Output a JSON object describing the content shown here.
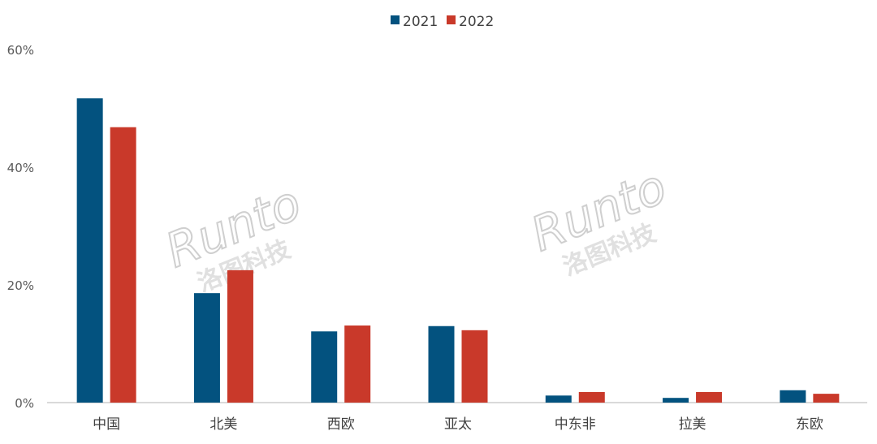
{
  "chart_data": {
    "type": "bar",
    "categories": [
      "中国",
      "北美",
      "西欧",
      "亚太",
      "中东非",
      "拉美",
      "东欧"
    ],
    "series": [
      {
        "name": "2021",
        "color": "#03527F",
        "values": [
          51.7,
          18.6,
          12.1,
          13.0,
          1.2,
          0.8,
          2.1
        ]
      },
      {
        "name": "2022",
        "color": "#C9392A",
        "values": [
          46.8,
          22.5,
          13.1,
          12.3,
          1.8,
          1.8,
          1.5
        ]
      }
    ],
    "yticks": [
      "0%",
      "20%",
      "40%",
      "60%"
    ],
    "ylim": [
      0,
      60
    ],
    "grid": false,
    "legend": "top-center",
    "title": "",
    "xlabel": "",
    "ylabel": ""
  },
  "watermark": {
    "brand": "Runto",
    "chinese": "洛图科技"
  }
}
